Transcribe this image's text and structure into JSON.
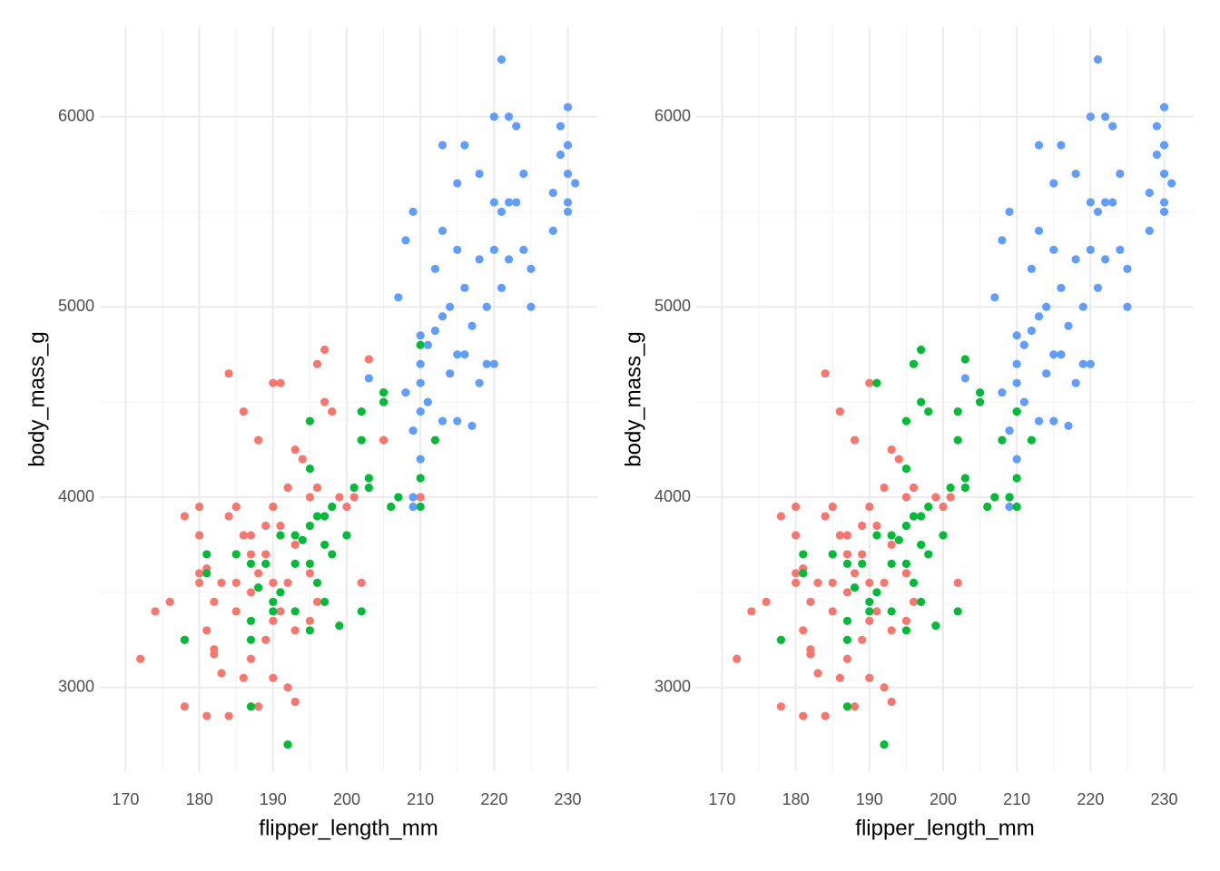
{
  "chart_data": [
    {
      "type": "scatter",
      "xlabel": "flipper_length_mm",
      "ylabel": "body_mass_g",
      "xlim": [
        166.5,
        234
      ],
      "ylim": [
        2560,
        6470
      ],
      "xticks": [
        170,
        180,
        190,
        200,
        210,
        220,
        230
      ],
      "yticks": [
        3000,
        4000,
        5000,
        6000
      ],
      "xminor": [
        175,
        185,
        195,
        205,
        215,
        225
      ],
      "yminor": [
        3500,
        4500,
        5500
      ],
      "grid": true,
      "series": [
        {
          "color": "#F8766D",
          "x": [
            172,
            174,
            176,
            178,
            178,
            178,
            180,
            180,
            180,
            180,
            181,
            181,
            181,
            182,
            182,
            182,
            183,
            183,
            184,
            184,
            184,
            185,
            185,
            185,
            186,
            186,
            186,
            187,
            187,
            187,
            188,
            188,
            188,
            189,
            189,
            190,
            190,
            190,
            190,
            191,
            191,
            191,
            192,
            192,
            192,
            193,
            193,
            193,
            194,
            195,
            195,
            196,
            196,
            196,
            197,
            197,
            198,
            199,
            200,
            201,
            202,
            203,
            205,
            210,
            193,
            185,
            187,
            189,
            190,
            195
          ],
          "values": [
            3150,
            3400,
            3450,
            3900,
            3250,
            2900,
            3950,
            3800,
            3600,
            3550,
            3300,
            2850,
            3625,
            3200,
            3450,
            3175,
            3550,
            3075,
            4650,
            3900,
            2850,
            3950,
            3550,
            3400,
            4450,
            3800,
            3050,
            3800,
            3500,
            3150,
            4300,
            3600,
            2900,
            3700,
            3250,
            3950,
            4600,
            3550,
            3050,
            4600,
            3850,
            3400,
            4050,
            3550,
            3000,
            4250,
            3750,
            2925,
            4200,
            4000,
            3600,
            4700,
            4050,
            3450,
            4775,
            4500,
            4450,
            4000,
            3950,
            4000,
            3550,
            4725,
            4300,
            4000,
            3300,
            3700,
            3700,
            3850,
            3350,
            3350
          ]
        },
        {
          "color": "#00BA38",
          "x": [
            178,
            181,
            181,
            185,
            187,
            187,
            187,
            187,
            188,
            189,
            190,
            190,
            191,
            192,
            193,
            193,
            194,
            195,
            195,
            195,
            195,
            196,
            196,
            197,
            197,
            198,
            198,
            199,
            200,
            201,
            202,
            202,
            202,
            203,
            203,
            205,
            205,
            206,
            207,
            210,
            210,
            210,
            212,
            195,
            193,
            197,
            191
          ],
          "values": [
            3250,
            3700,
            3600,
            3700,
            2900,
            3650,
            3350,
            3250,
            3525,
            3650,
            3450,
            3400,
            3500,
            2700,
            3800,
            3650,
            3775,
            4400,
            4150,
            3650,
            3300,
            3550,
            3900,
            3450,
            3750,
            3700,
            3950,
            3325,
            3800,
            4050,
            4450,
            4300,
            3400,
            4100,
            4050,
            4550,
            4500,
            3950,
            4000,
            4800,
            4100,
            3950,
            4300,
            3850,
            3400,
            3900,
            3800
          ]
        },
        {
          "color": "#619CFF",
          "x": [
            203,
            207,
            208,
            208,
            209,
            209,
            209,
            209,
            210,
            210,
            210,
            210,
            210,
            211,
            211,
            212,
            212,
            213,
            213,
            213,
            213,
            214,
            214,
            215,
            215,
            215,
            215,
            216,
            216,
            216,
            217,
            217,
            218,
            218,
            218,
            219,
            219,
            220,
            220,
            220,
            220,
            221,
            221,
            221,
            222,
            222,
            222,
            223,
            223,
            224,
            224,
            225,
            225,
            228,
            228,
            229,
            229,
            230,
            230,
            230,
            230,
            230,
            231
          ],
          "values": [
            4625,
            5050,
            4550,
            5350,
            5500,
            4350,
            4000,
            3950,
            4850,
            4700,
            4600,
            4200,
            4450,
            4800,
            4500,
            5200,
            4875,
            5850,
            5400,
            4950,
            4400,
            5000,
            4650,
            5650,
            5300,
            4750,
            4400,
            5850,
            5100,
            4750,
            4375,
            4900,
            5700,
            5250,
            4600,
            5000,
            4700,
            6000,
            5550,
            5300,
            4700,
            6300,
            5500,
            5100,
            6000,
            5550,
            5250,
            5950,
            5550,
            5700,
            5300,
            5200,
            5000,
            5600,
            5400,
            5950,
            5800,
            6050,
            5850,
            5700,
            5550,
            5500,
            5650
          ]
        }
      ]
    },
    {
      "type": "scatter",
      "xlabel": "flipper_length_mm",
      "ylabel": "body_mass_g",
      "xlim": [
        166.5,
        234
      ],
      "ylim": [
        2560,
        6470
      ],
      "xticks": [
        170,
        180,
        190,
        200,
        210,
        220,
        230
      ],
      "yticks": [
        3000,
        4000,
        5000,
        6000
      ],
      "xminor": [
        175,
        185,
        195,
        205,
        215,
        225
      ],
      "yminor": [
        3500,
        4500,
        5500
      ],
      "grid": true,
      "series": [
        {
          "color": "#F8766D",
          "x": [
            172,
            174,
            176,
            178,
            178,
            178,
            180,
            180,
            180,
            180,
            181,
            181,
            181,
            182,
            182,
            182,
            183,
            183,
            184,
            184,
            184,
            185,
            185,
            185,
            186,
            186,
            186,
            187,
            187,
            187,
            188,
            188,
            188,
            189,
            189,
            190,
            190,
            190,
            190,
            191,
            191,
            192,
            192,
            192,
            193,
            193,
            193,
            194,
            195,
            195,
            196,
            196,
            199,
            200,
            201,
            202,
            193,
            185,
            187,
            189,
            190,
            195
          ],
          "values": [
            3150,
            3400,
            3450,
            3900,
            3250,
            2900,
            3950,
            3800,
            3600,
            3550,
            3300,
            2850,
            3625,
            3200,
            3450,
            3175,
            3550,
            3075,
            4650,
            3900,
            2850,
            3950,
            3550,
            3400,
            4450,
            3800,
            3050,
            3800,
            3500,
            3150,
            4300,
            3600,
            2900,
            3700,
            3250,
            3950,
            4600,
            3550,
            3050,
            3850,
            3400,
            4050,
            3550,
            3000,
            4250,
            3750,
            2925,
            4200,
            4000,
            3600,
            4050,
            3450,
            4000,
            3950,
            4000,
            3550,
            3300,
            3700,
            3700,
            3850,
            3350,
            3350
          ]
        },
        {
          "color": "#619CFF",
          "x": [
            203,
            207,
            208,
            208,
            209,
            209,
            209,
            209,
            210,
            210,
            210,
            210,
            210,
            211,
            211,
            212,
            212,
            213,
            213,
            213,
            213,
            214,
            214,
            215,
            215,
            215,
            215,
            216,
            216,
            216,
            217,
            217,
            218,
            218,
            218,
            219,
            219,
            220,
            220,
            220,
            220,
            221,
            221,
            221,
            222,
            222,
            222,
            223,
            223,
            224,
            224,
            225,
            225,
            228,
            228,
            229,
            229,
            230,
            230,
            230,
            230,
            230,
            231
          ],
          "values": [
            4625,
            5050,
            4550,
            5350,
            5500,
            4350,
            4000,
            3950,
            4850,
            4700,
            4600,
            4200,
            4450,
            4800,
            4500,
            5200,
            4875,
            5850,
            5400,
            4950,
            4400,
            5000,
            4650,
            5650,
            5300,
            4750,
            4400,
            5850,
            5100,
            4750,
            4375,
            4900,
            5700,
            5250,
            4600,
            5000,
            4700,
            6000,
            5550,
            5300,
            4700,
            6300,
            5500,
            5100,
            6000,
            5550,
            5250,
            5950,
            5550,
            5700,
            5300,
            5200,
            5000,
            5600,
            5400,
            5950,
            5800,
            6050,
            5850,
            5700,
            5550,
            5500,
            5650
          ]
        },
        {
          "color": "#00BA38",
          "x": [
            178,
            181,
            181,
            185,
            187,
            187,
            187,
            187,
            188,
            189,
            190,
            190,
            191,
            192,
            193,
            193,
            194,
            195,
            195,
            195,
            195,
            196,
            196,
            197,
            197,
            198,
            198,
            199,
            200,
            201,
            202,
            202,
            202,
            203,
            203,
            205,
            205,
            206,
            207,
            210,
            210,
            210,
            212,
            195,
            193,
            197,
            191,
            191,
            196,
            197,
            197,
            198,
            203,
            208,
            209
          ],
          "values": [
            3250,
            3700,
            3600,
            3700,
            2900,
            3650,
            3350,
            3250,
            3525,
            3650,
            3450,
            3400,
            3500,
            2700,
            3800,
            3650,
            3775,
            4400,
            4150,
            3650,
            3300,
            3550,
            3900,
            3450,
            3750,
            3700,
            3950,
            3325,
            3800,
            4050,
            4450,
            4300,
            3400,
            4100,
            4050,
            4550,
            4500,
            3950,
            4000,
            4450,
            4100,
            3950,
            4300,
            3850,
            3400,
            3900,
            3800,
            4600,
            4700,
            4775,
            4500,
            4450,
            4725,
            4300,
            4000
          ]
        }
      ]
    }
  ]
}
